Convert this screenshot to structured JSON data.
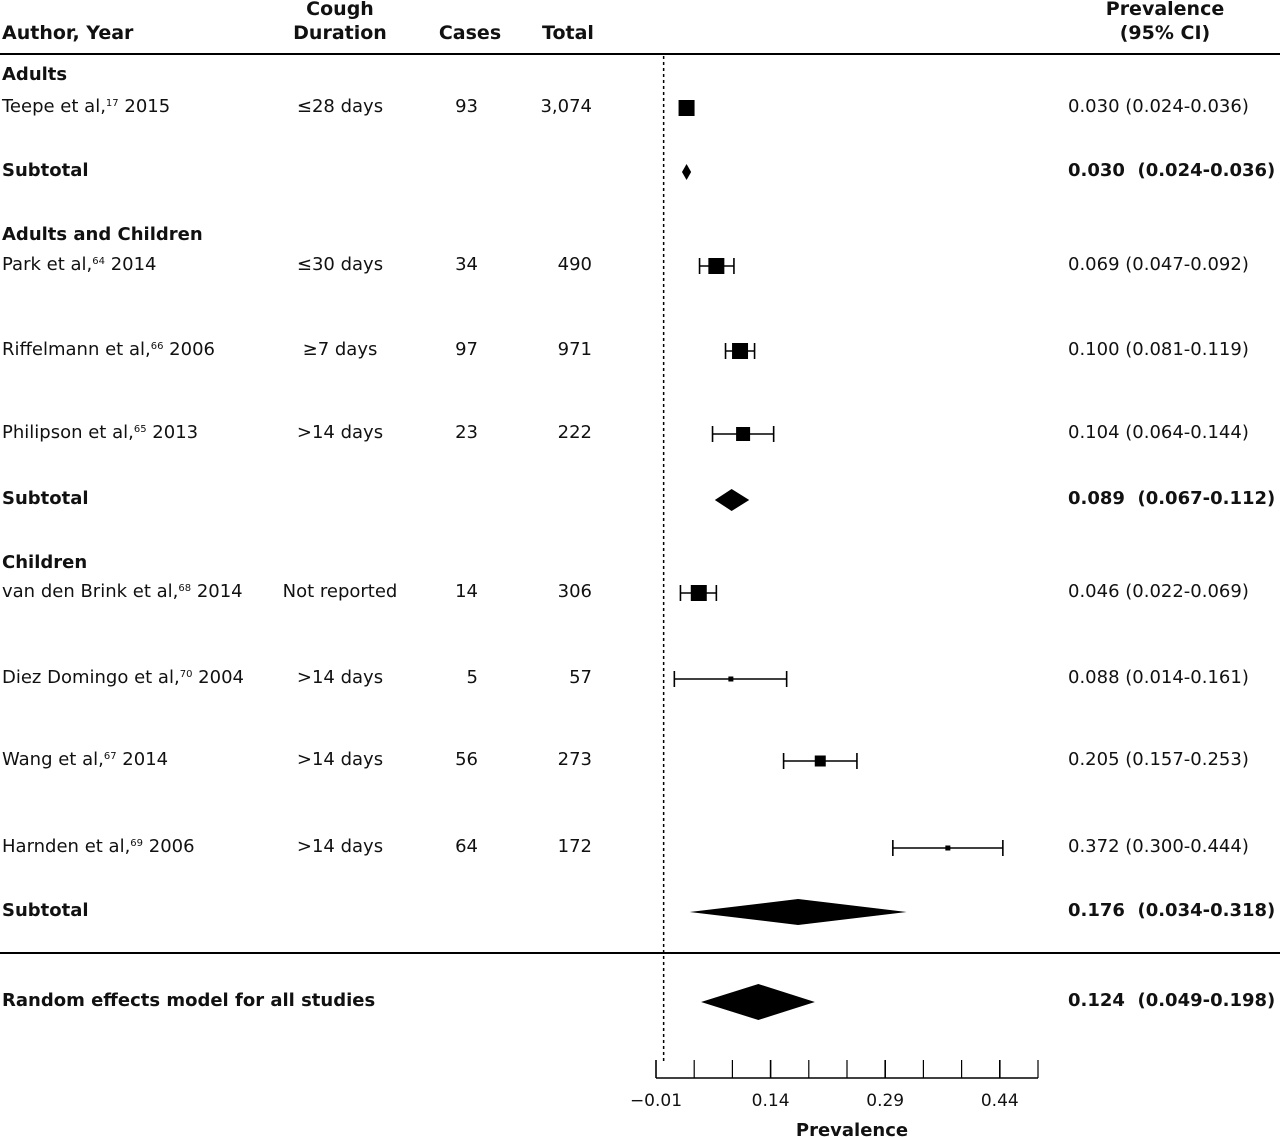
{
  "header": {
    "author_year": "Author, Year",
    "cough_line1": "Cough",
    "cough_line2": "Duration",
    "cases": "Cases",
    "total": "Total",
    "prev_line1": "Prevalence",
    "prev_line2": "(95% CI)"
  },
  "rows": [
    {
      "kind": "group",
      "label": "Adults"
    },
    {
      "kind": "study",
      "author": "Teepe et al,",
      "ref": "17",
      "year": " 2015",
      "duration": "≤28 days",
      "cases": "93",
      "total": "3,074",
      "ci_text": "0.030 (0.024-0.036)"
    },
    {
      "kind": "subtotal",
      "label": "Subtotal",
      "ci_text": "0.030  (0.024-0.036)"
    },
    {
      "kind": "group",
      "label": "Adults and Children"
    },
    {
      "kind": "study",
      "author": "Park et al,",
      "ref": "64",
      "year": " 2014",
      "duration": "≤30 days",
      "cases": "34",
      "total": "490",
      "ci_text": "0.069 (0.047-0.092)"
    },
    {
      "kind": "study",
      "author": "Riffelmann et al,",
      "ref": "66",
      "year": " 2006",
      "duration": "≥7 days",
      "cases": "97",
      "total": "971",
      "ci_text": "0.100 (0.081-0.119)"
    },
    {
      "kind": "study",
      "author": "Philipson et al,",
      "ref": "65",
      "year": " 2013",
      "duration": ">14 days",
      "cases": "23",
      "total": "222",
      "ci_text": "0.104 (0.064-0.144)"
    },
    {
      "kind": "subtotal",
      "label": "Subtotal",
      "ci_text": "0.089  (0.067-0.112)"
    },
    {
      "kind": "group",
      "label": "Children"
    },
    {
      "kind": "study",
      "author": "van den Brink et al,",
      "ref": "68",
      "year": " 2014",
      "duration": "Not reported",
      "cases": "14",
      "total": "306",
      "ci_text": "0.046 (0.022-0.069)"
    },
    {
      "kind": "study",
      "author": "Diez Domingo et al,",
      "ref": "70",
      "year": " 2004",
      "duration": ">14 days",
      "cases": "5",
      "total": "57",
      "ci_text": "0.088 (0.014-0.161)"
    },
    {
      "kind": "study",
      "author": "Wang et al,",
      "ref": "67",
      "year": " 2014",
      "duration": ">14 days",
      "cases": "56",
      "total": "273",
      "ci_text": "0.205 (0.157-0.253)"
    },
    {
      "kind": "study",
      "author": "Harnden et al,",
      "ref": "69",
      "year": " 2006",
      "duration": ">14 days",
      "cases": "64",
      "total": "172",
      "ci_text": "0.372 (0.300-0.444)"
    },
    {
      "kind": "subtotal",
      "label": "Subtotal",
      "ci_text": "0.176  (0.034-0.318)"
    },
    {
      "kind": "overall",
      "label": "Random effects model for all studies",
      "ci_text": "0.124  (0.049-0.198)"
    }
  ],
  "chart_data": {
    "type": "forest",
    "xlabel": "Prevalence",
    "xlim": [
      -0.01,
      0.49
    ],
    "xticks": [
      -0.01,
      0.14,
      0.29,
      0.44
    ],
    "xtick_labels": [
      "−0.01",
      "0.14",
      "0.29",
      "0.44"
    ],
    "reference_line": 0,
    "studies": [
      {
        "name": "Teepe et al, 2015",
        "est": 0.03,
        "lo": 0.024,
        "hi": 0.036,
        "weight": "large"
      },
      {
        "name": "Park et al, 2014",
        "est": 0.069,
        "lo": 0.047,
        "hi": 0.092,
        "weight": "large"
      },
      {
        "name": "Riffelmann et al, 2006",
        "est": 0.1,
        "lo": 0.081,
        "hi": 0.119,
        "weight": "large"
      },
      {
        "name": "Philipson et al, 2013",
        "est": 0.104,
        "lo": 0.064,
        "hi": 0.144,
        "weight": "medium"
      },
      {
        "name": "van den Brink et al, 2014",
        "est": 0.046,
        "lo": 0.022,
        "hi": 0.069,
        "weight": "large"
      },
      {
        "name": "Diez Domingo et al, 2004",
        "est": 0.088,
        "lo": 0.014,
        "hi": 0.161,
        "weight": "tiny"
      },
      {
        "name": "Wang et al, 2014",
        "est": 0.205,
        "lo": 0.157,
        "hi": 0.253,
        "weight": "small"
      },
      {
        "name": "Harnden et al, 2006",
        "est": 0.372,
        "lo": 0.3,
        "hi": 0.444,
        "weight": "tiny"
      }
    ],
    "pooled": [
      {
        "name": "Subtotal Adults",
        "est": 0.03,
        "lo": 0.024,
        "hi": 0.036
      },
      {
        "name": "Subtotal Adults and Children",
        "est": 0.089,
        "lo": 0.067,
        "hi": 0.112
      },
      {
        "name": "Subtotal Children",
        "est": 0.176,
        "lo": 0.034,
        "hi": 0.318
      },
      {
        "name": "Random effects model for all studies",
        "est": 0.124,
        "lo": 0.049,
        "hi": 0.198
      }
    ]
  }
}
